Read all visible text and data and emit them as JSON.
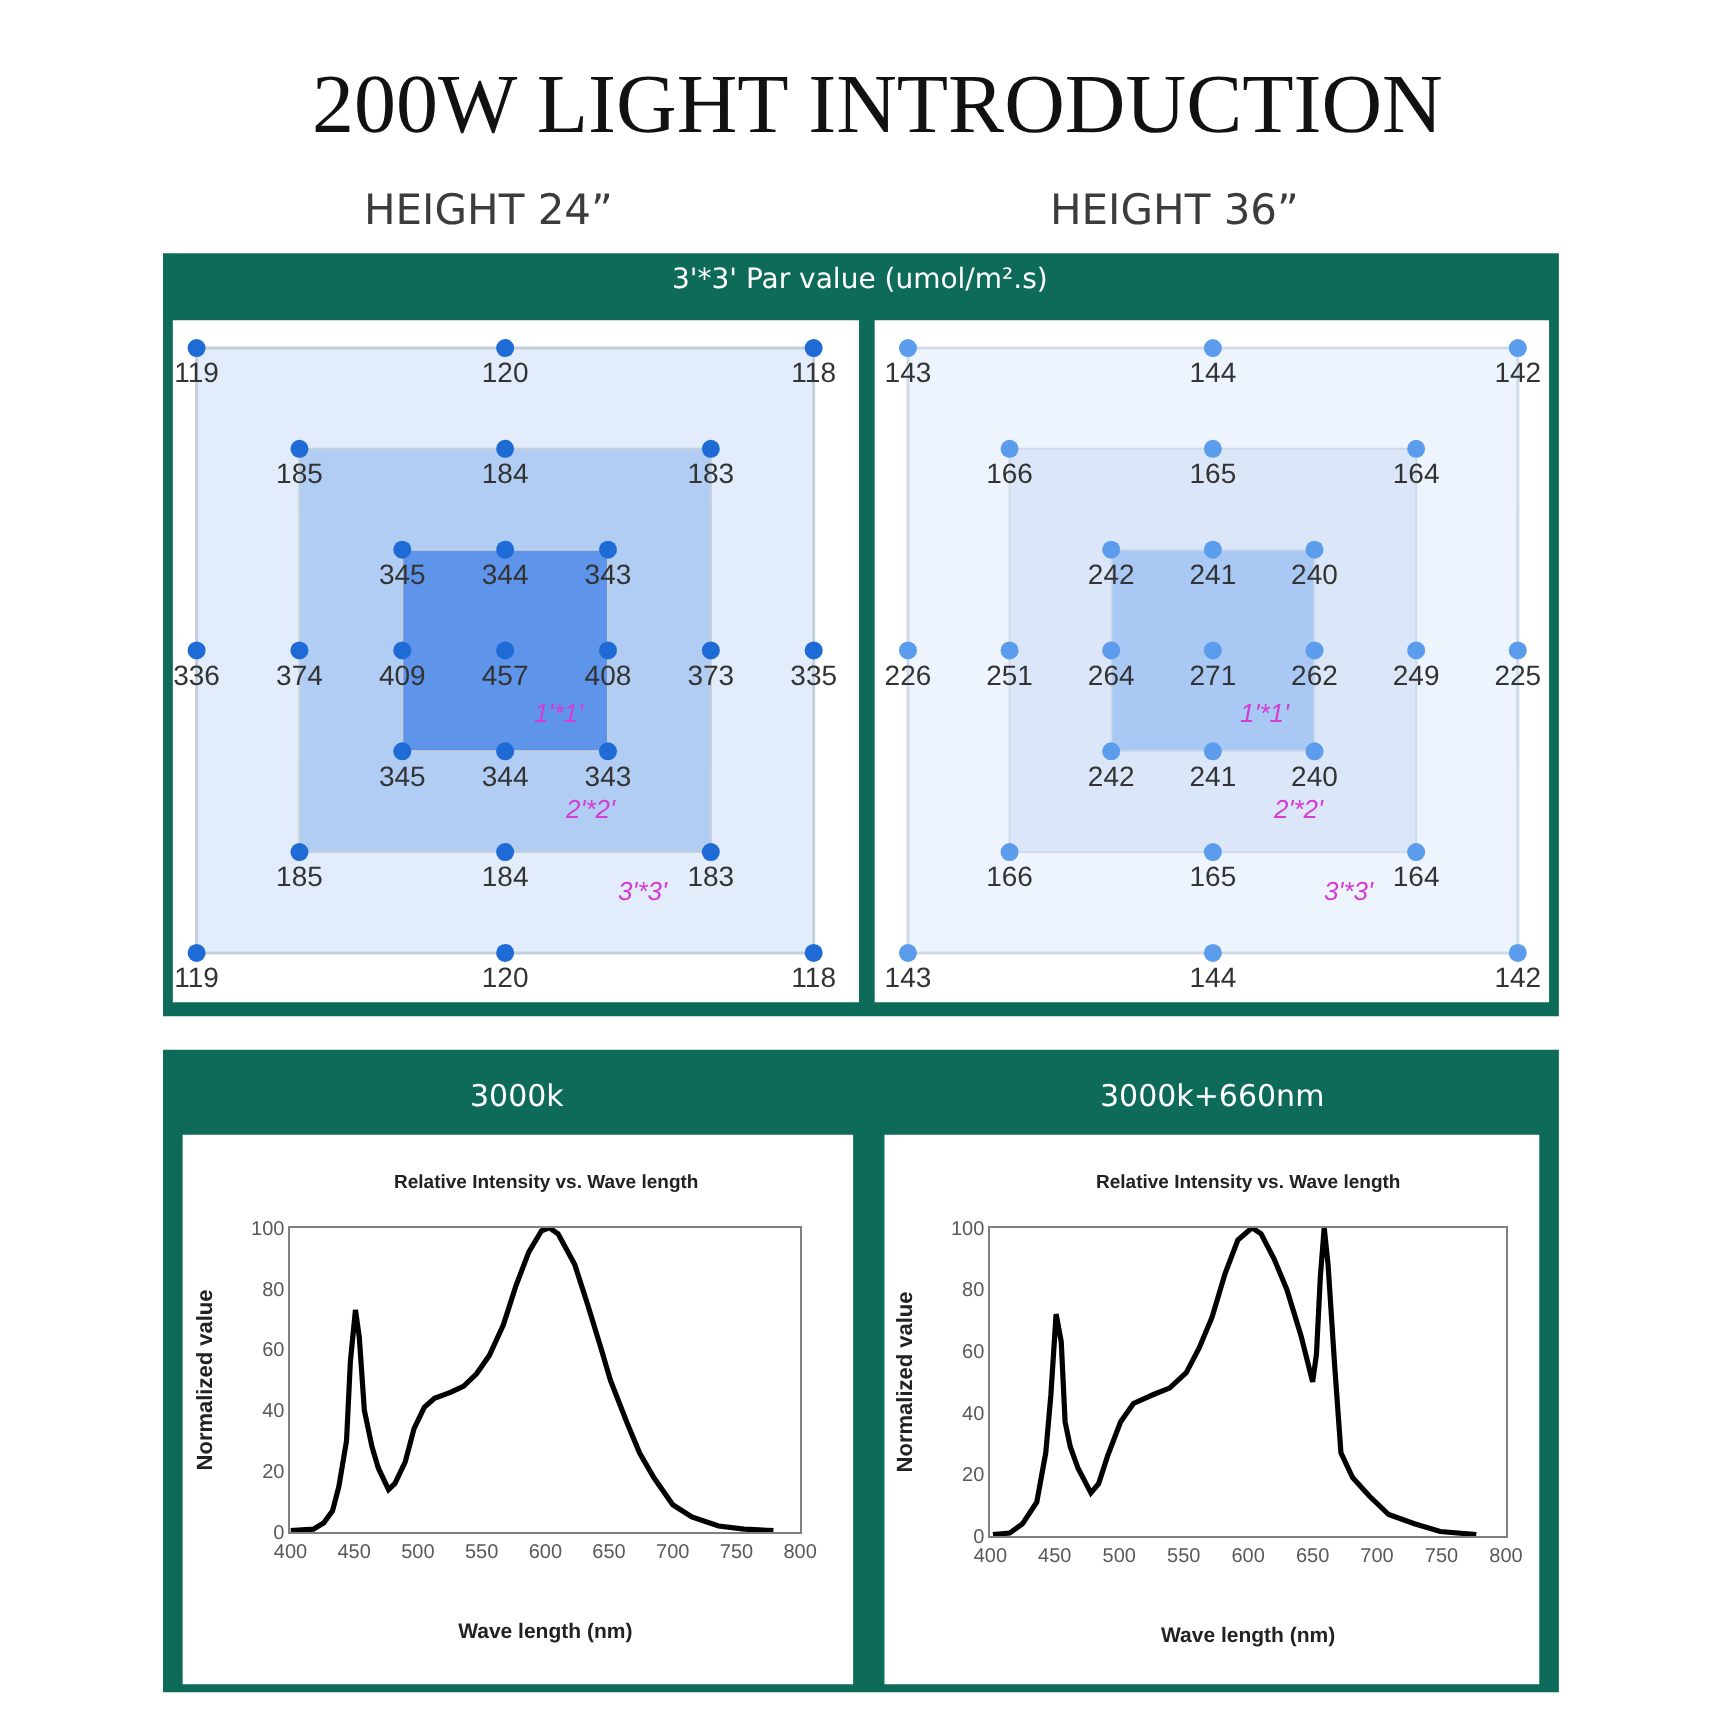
{
  "chart_data": [
    {
      "type": "other",
      "title": "HEIGHT 24”",
      "annotations": [
        "200W LIGHT INTRODUCTION",
        "3'*3' Par value (umol/m².s)",
        "1'*1'",
        "2'*2'",
        "3'*3'"
      ],
      "color": "#1e6bd6",
      "data_labels": true,
      "values": [
        119,
        120,
        118,
        185,
        184,
        183,
        345,
        344,
        343,
        336,
        374,
        409,
        457,
        408,
        373,
        335,
        345,
        344,
        343,
        185,
        184,
        183,
        119,
        120,
        118
      ]
    },
    {
      "type": "other",
      "title": "HEIGHT 36”",
      "annotations": [
        "1'*1'",
        "2'*2'",
        "3'*3'"
      ],
      "color": "#5b9cec",
      "data_labels": true,
      "values": [
        143,
        144,
        142,
        166,
        165,
        164,
        242,
        241,
        240,
        226,
        251,
        264,
        271,
        262,
        249,
        225,
        242,
        241,
        240,
        166,
        165,
        164,
        143,
        144,
        142
      ]
    },
    {
      "type": "line",
      "title": "3000k",
      "subtitle": "Relative Intensity vs. Wave length",
      "xlabel": "Wave length (nm)",
      "ylabel": "Normalized value",
      "color": "#000000",
      "x": [
        400,
        418,
        426,
        433,
        438,
        444,
        447,
        451,
        454,
        458,
        464,
        469,
        477,
        482,
        490,
        497,
        505,
        513,
        526,
        536,
        546,
        556,
        567,
        577,
        587,
        597,
        603,
        610,
        623,
        633,
        644,
        651,
        664,
        674,
        685,
        700,
        715,
        736,
        756,
        779
      ],
      "values": [
        0.5,
        1,
        3,
        7,
        15,
        30,
        56,
        73,
        64,
        40,
        28,
        21,
        14,
        16,
        23,
        34,
        41,
        44,
        46,
        48,
        52,
        58,
        68,
        81,
        92,
        99,
        100,
        98,
        88,
        75,
        60,
        50,
        36,
        26,
        18,
        9,
        5,
        2,
        1,
        0.5
      ],
      "xlim": [
        400,
        800
      ],
      "xticks": [
        400,
        450,
        500,
        550,
        600,
        650,
        700,
        750,
        800
      ],
      "ylim": [
        0,
        100
      ],
      "yticks": [
        0,
        20,
        40,
        60,
        80,
        100
      ]
    },
    {
      "type": "line",
      "title": "3000k+660nm",
      "subtitle": "Relative Intensity vs. Wave length",
      "xlabel": "Wave length (nm)",
      "ylabel": "Normalized value",
      "color": "#000000",
      "x": [
        402,
        415,
        425,
        436,
        443,
        447,
        451,
        455,
        458,
        462,
        468,
        478,
        484,
        491,
        501,
        511,
        527,
        539,
        552,
        562,
        572,
        582,
        592,
        603,
        610,
        620,
        630,
        641,
        650,
        653,
        656,
        659,
        662,
        667,
        672,
        681,
        694,
        709,
        729,
        749,
        777
      ],
      "values": [
        0.5,
        1,
        4,
        11,
        27,
        46,
        72,
        63,
        37,
        29,
        22,
        14,
        17,
        26,
        37,
        43,
        46,
        48,
        53,
        61,
        71,
        85,
        96,
        100,
        98,
        90,
        80,
        65,
        50,
        59,
        84,
        100,
        88,
        56,
        27,
        19,
        13,
        7,
        4,
        1.5,
        0.5
      ],
      "xlim": [
        400,
        800
      ],
      "xticks": [
        400,
        450,
        500,
        550,
        600,
        650,
        700,
        750,
        800
      ],
      "ylim": [
        0,
        100
      ],
      "yticks": [
        0,
        20,
        40,
        60,
        80,
        100
      ]
    }
  ]
}
